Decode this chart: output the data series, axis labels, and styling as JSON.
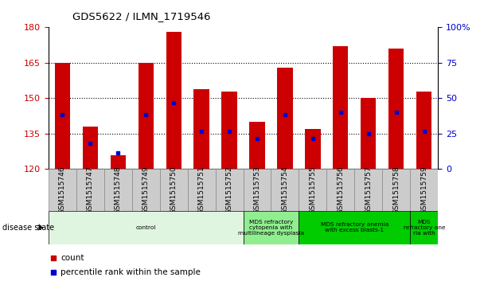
{
  "title": "GDS5622 / ILMN_1719546",
  "samples": [
    "GSM1515746",
    "GSM1515747",
    "GSM1515748",
    "GSM1515749",
    "GSM1515750",
    "GSM1515751",
    "GSM1515752",
    "GSM1515753",
    "GSM1515754",
    "GSM1515755",
    "GSM1515756",
    "GSM1515757",
    "GSM1515758",
    "GSM1515759"
  ],
  "bar_heights": [
    165,
    138,
    126,
    165,
    178,
    154,
    153,
    140,
    163,
    137,
    172,
    150,
    171,
    153
  ],
  "blue_markers": [
    143,
    131,
    127,
    143,
    148,
    136,
    136,
    133,
    143,
    133,
    144,
    135,
    144,
    136
  ],
  "ymin": 120,
  "ymax": 180,
  "yticks_left": [
    120,
    135,
    150,
    165,
    180
  ],
  "right_ticks_vals": [
    0,
    25,
    50,
    75,
    100
  ],
  "bar_color": "#cc0000",
  "blue_color": "#0000cc",
  "bar_width": 0.55,
  "grid_lines_at": [
    135,
    150,
    165
  ],
  "disease_groups": [
    {
      "label": "control",
      "start": 0,
      "end": 7,
      "color": "#e0f5e0"
    },
    {
      "label": "MDS refractory\ncytopenia with\nmultilineage dysplasia",
      "start": 7,
      "end": 9,
      "color": "#90ee90"
    },
    {
      "label": "MDS refractory anemia\nwith excess blasts-1",
      "start": 9,
      "end": 13,
      "color": "#00cc00"
    },
    {
      "label": "MDS\nrefractory ane\nria with",
      "start": 13,
      "end": 14,
      "color": "#00cc00"
    }
  ],
  "disease_state_label": "disease state",
  "legend_count_label": "count",
  "legend_percentile_label": "percentile rank within the sample",
  "xtick_bg_color": "#cccccc",
  "xtick_border_color": "#888888"
}
